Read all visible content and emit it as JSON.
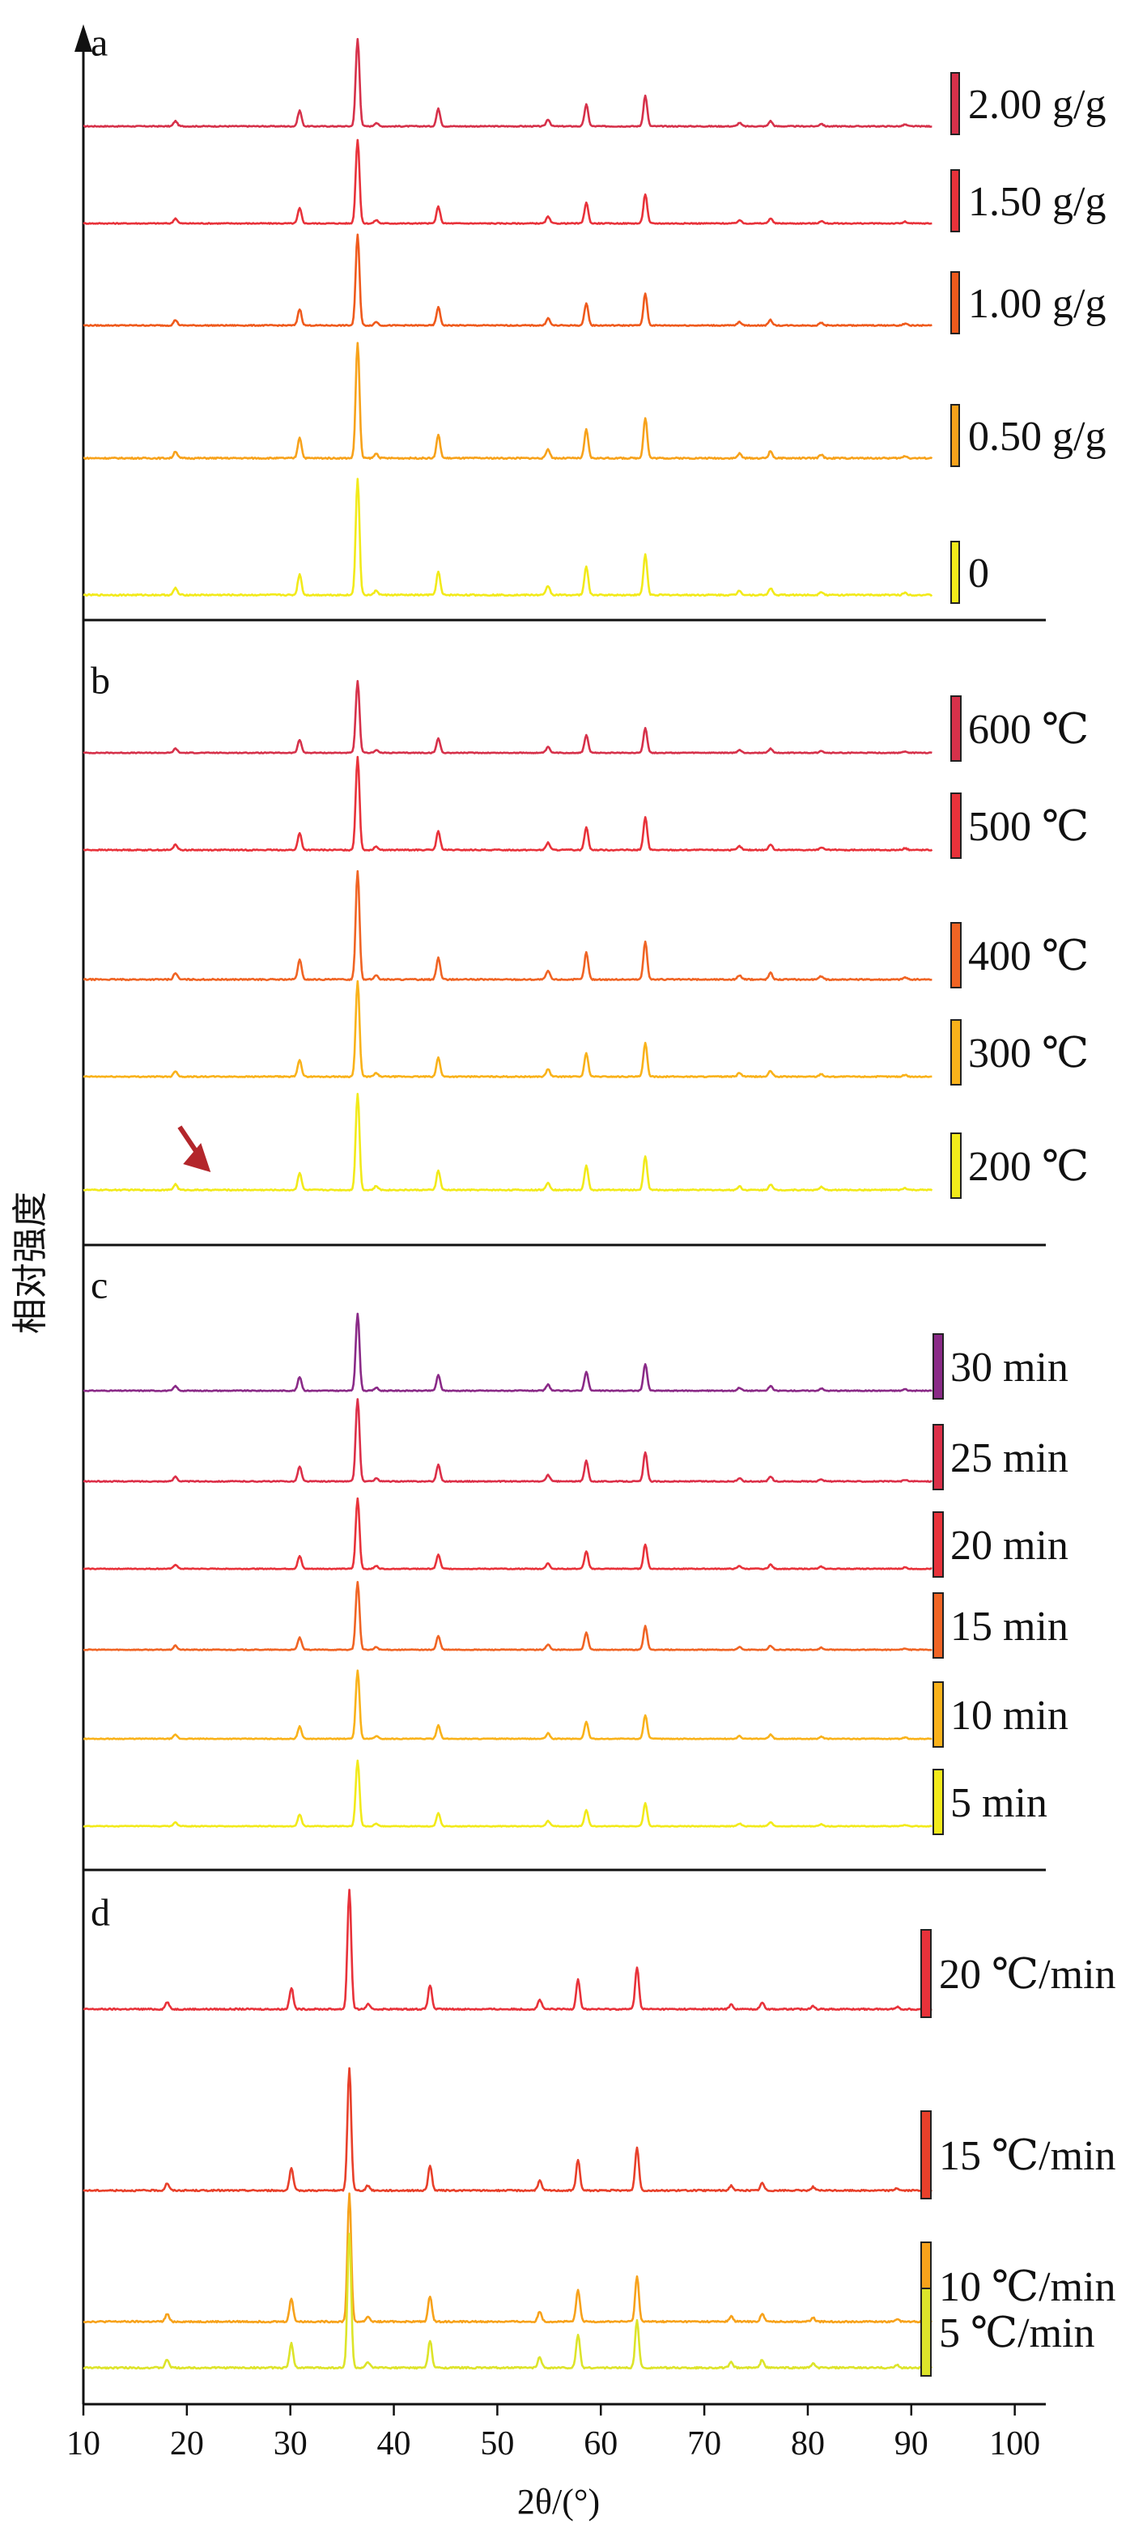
{
  "chart_data": [
    {
      "type": "line",
      "panel_label": "a",
      "series": [
        {
          "name": "2.00 g/g",
          "color": "#d6314a",
          "scale": 0.77
        },
        {
          "name": "1.50 g/g",
          "color": "#e8323a",
          "scale": 0.74
        },
        {
          "name": "1.00 g/g",
          "color": "#ef5a1c",
          "scale": 0.8
        },
        {
          "name": "0.50 g/g",
          "color": "#f7a21b",
          "scale": 1.02
        },
        {
          "name": "0",
          "color": "#f2ea1a",
          "scale": 1.02
        }
      ]
    },
    {
      "type": "line",
      "panel_label": "b",
      "annotation": "arrow near 2θ ≈ 22° on 200 ℃ pattern",
      "series": [
        {
          "name": "600 ℃",
          "color": "#d6314a",
          "scale": 0.63
        },
        {
          "name": "500 ℃",
          "color": "#e8323a",
          "scale": 0.82
        },
        {
          "name": "400 ℃",
          "color": "#f06424",
          "scale": 0.96
        },
        {
          "name": "300 ℃",
          "color": "#f9b21a",
          "scale": 0.84
        },
        {
          "name": "200 ℃",
          "color": "#f2ea1a",
          "scale": 0.85
        }
      ]
    },
    {
      "type": "line",
      "panel_label": "c",
      "series": [
        {
          "name": "30 min",
          "color": "#8a2a87",
          "scale": 0.68
        },
        {
          "name": "25 min",
          "color": "#dc2f48",
          "scale": 0.73
        },
        {
          "name": "20 min",
          "color": "#e8323a",
          "scale": 0.62
        },
        {
          "name": "15 min",
          "color": "#f06424",
          "scale": 0.6
        },
        {
          "name": "10 min",
          "color": "#f9b21a",
          "scale": 0.6
        },
        {
          "name": "5 min",
          "color": "#f2ea1a",
          "scale": 0.58
        }
      ]
    },
    {
      "type": "line",
      "panel_label": "d",
      "x_shift": -0.8,
      "series": [
        {
          "name": "20 ℃/min",
          "color": "#e8323a",
          "scale": 0.82
        },
        {
          "name": "15 ℃/min",
          "color": "#e8402a",
          "scale": 0.84
        },
        {
          "name": "10 ℃/min",
          "color": "#f7a21b",
          "scale": 0.88
        },
        {
          "name": "5 ℃/min",
          "color": "#dde42a",
          "scale": 0.92
        }
      ]
    }
  ],
  "axes": {
    "xlabel": "2θ/(°)",
    "ylabel": "相对强度",
    "xlim": [
      10,
      103
    ],
    "x_ticks": [
      10,
      20,
      30,
      40,
      50,
      60,
      70,
      80,
      90,
      100
    ],
    "pattern_range": [
      10,
      92
    ]
  },
  "peaks": [
    {
      "x": 18.9,
      "h": 0.06
    },
    {
      "x": 30.9,
      "h": 0.18
    },
    {
      "x": 36.5,
      "h": 1.0
    },
    {
      "x": 38.3,
      "h": 0.04
    },
    {
      "x": 44.3,
      "h": 0.2
    },
    {
      "x": 54.9,
      "h": 0.08
    },
    {
      "x": 58.6,
      "h": 0.25
    },
    {
      "x": 64.3,
      "h": 0.35
    },
    {
      "x": 73.4,
      "h": 0.04
    },
    {
      "x": 76.4,
      "h": 0.06
    },
    {
      "x": 81.3,
      "h": 0.03
    },
    {
      "x": 89.4,
      "h": 0.02
    }
  ]
}
